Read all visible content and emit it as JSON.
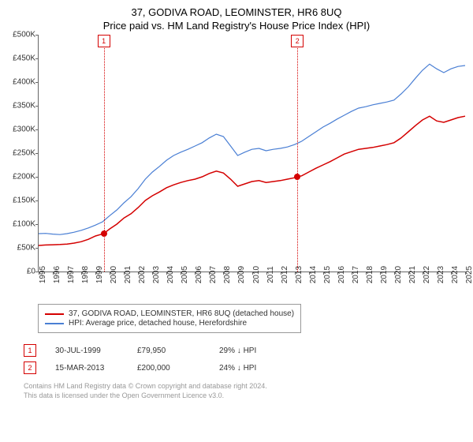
{
  "title": {
    "main": "37, GODIVA ROAD, LEOMINSTER, HR6 8UQ",
    "sub": "Price paid vs. HM Land Registry's House Price Index (HPI)"
  },
  "chart": {
    "type": "line",
    "background": "#ffffff",
    "ylim": [
      0,
      500000
    ],
    "ytick_step": 50000,
    "ytick_prefix": "£",
    "ytick_suffix": "K",
    "ytick_divisor": 1000,
    "xlim": [
      1995,
      2025
    ],
    "xtick_step": 1,
    "axis_color": "#666666",
    "tick_fontsize": 10,
    "series": [
      {
        "id": "property",
        "label": "37, GODIVA ROAD, LEOMINSTER, HR6 8UQ (detached house)",
        "color": "#d40000",
        "width": 1.5,
        "data": [
          [
            1995,
            55000
          ],
          [
            1995.5,
            56000
          ],
          [
            1996,
            56500
          ],
          [
            1996.5,
            57000
          ],
          [
            1997,
            58000
          ],
          [
            1997.5,
            60000
          ],
          [
            1998,
            63000
          ],
          [
            1998.5,
            68000
          ],
          [
            1999,
            75000
          ],
          [
            1999.58,
            80000
          ],
          [
            2000,
            90000
          ],
          [
            2000.5,
            100000
          ],
          [
            2001,
            113000
          ],
          [
            2001.5,
            122000
          ],
          [
            2002,
            135000
          ],
          [
            2002.5,
            150000
          ],
          [
            2003,
            160000
          ],
          [
            2003.5,
            168000
          ],
          [
            2004,
            177000
          ],
          [
            2004.5,
            183000
          ],
          [
            2005,
            188000
          ],
          [
            2005.5,
            192000
          ],
          [
            2006,
            195000
          ],
          [
            2006.5,
            200000
          ],
          [
            2007,
            207000
          ],
          [
            2007.5,
            212000
          ],
          [
            2008,
            208000
          ],
          [
            2008.5,
            195000
          ],
          [
            2009,
            180000
          ],
          [
            2009.5,
            185000
          ],
          [
            2010,
            190000
          ],
          [
            2010.5,
            192000
          ],
          [
            2011,
            188000
          ],
          [
            2011.5,
            190000
          ],
          [
            2012,
            192000
          ],
          [
            2012.5,
            195000
          ],
          [
            2013,
            198000
          ],
          [
            2013.2,
            200000
          ],
          [
            2013.5,
            202000
          ],
          [
            2014,
            210000
          ],
          [
            2014.5,
            218000
          ],
          [
            2015,
            225000
          ],
          [
            2015.5,
            232000
          ],
          [
            2016,
            240000
          ],
          [
            2016.5,
            248000
          ],
          [
            2017,
            253000
          ],
          [
            2017.5,
            258000
          ],
          [
            2018,
            260000
          ],
          [
            2018.5,
            262000
          ],
          [
            2019,
            265000
          ],
          [
            2019.5,
            268000
          ],
          [
            2020,
            272000
          ],
          [
            2020.5,
            282000
          ],
          [
            2021,
            295000
          ],
          [
            2021.5,
            308000
          ],
          [
            2022,
            320000
          ],
          [
            2022.5,
            328000
          ],
          [
            2023,
            318000
          ],
          [
            2023.5,
            315000
          ],
          [
            2024,
            320000
          ],
          [
            2024.5,
            325000
          ],
          [
            2025,
            328000
          ]
        ]
      },
      {
        "id": "hpi",
        "label": "HPI: Average price, detached house, Herefordshire",
        "color": "#4a7fd4",
        "width": 1.2,
        "data": [
          [
            1995,
            80000
          ],
          [
            1995.5,
            80500
          ],
          [
            1996,
            79000
          ],
          [
            1996.5,
            78000
          ],
          [
            1997,
            80000
          ],
          [
            1997.5,
            83000
          ],
          [
            1998,
            87000
          ],
          [
            1998.5,
            92000
          ],
          [
            1999,
            98000
          ],
          [
            1999.5,
            105000
          ],
          [
            2000,
            118000
          ],
          [
            2000.5,
            130000
          ],
          [
            2001,
            145000
          ],
          [
            2001.5,
            158000
          ],
          [
            2002,
            175000
          ],
          [
            2002.5,
            195000
          ],
          [
            2003,
            210000
          ],
          [
            2003.5,
            222000
          ],
          [
            2004,
            235000
          ],
          [
            2004.5,
            245000
          ],
          [
            2005,
            252000
          ],
          [
            2005.5,
            258000
          ],
          [
            2006,
            265000
          ],
          [
            2006.5,
            272000
          ],
          [
            2007,
            282000
          ],
          [
            2007.5,
            290000
          ],
          [
            2008,
            285000
          ],
          [
            2008.5,
            265000
          ],
          [
            2009,
            245000
          ],
          [
            2009.5,
            252000
          ],
          [
            2010,
            258000
          ],
          [
            2010.5,
            260000
          ],
          [
            2011,
            255000
          ],
          [
            2011.5,
            258000
          ],
          [
            2012,
            260000
          ],
          [
            2012.5,
            263000
          ],
          [
            2013,
            268000
          ],
          [
            2013.5,
            275000
          ],
          [
            2014,
            285000
          ],
          [
            2014.5,
            295000
          ],
          [
            2015,
            305000
          ],
          [
            2015.5,
            313000
          ],
          [
            2016,
            322000
          ],
          [
            2016.5,
            330000
          ],
          [
            2017,
            338000
          ],
          [
            2017.5,
            345000
          ],
          [
            2018,
            348000
          ],
          [
            2018.5,
            352000
          ],
          [
            2019,
            355000
          ],
          [
            2019.5,
            358000
          ],
          [
            2020,
            362000
          ],
          [
            2020.5,
            375000
          ],
          [
            2021,
            390000
          ],
          [
            2021.5,
            408000
          ],
          [
            2022,
            425000
          ],
          [
            2022.5,
            438000
          ],
          [
            2023,
            428000
          ],
          [
            2023.5,
            420000
          ],
          [
            2024,
            428000
          ],
          [
            2024.5,
            433000
          ],
          [
            2025,
            435000
          ]
        ]
      }
    ],
    "markers": [
      {
        "n": "1",
        "x": 1999.58,
        "color": "#d40000"
      },
      {
        "n": "2",
        "x": 2013.2,
        "color": "#d40000"
      }
    ],
    "points": [
      {
        "x": 1999.58,
        "y": 79950,
        "color": "#d40000"
      },
      {
        "x": 2013.2,
        "y": 200000,
        "color": "#d40000"
      }
    ]
  },
  "legend": {
    "border_color": "#999999"
  },
  "sales": [
    {
      "n": "1",
      "date": "30-JUL-1999",
      "price": "£79,950",
      "delta": "29% ↓ HPI",
      "color": "#d40000"
    },
    {
      "n": "2",
      "date": "15-MAR-2013",
      "price": "£200,000",
      "delta": "24% ↓ HPI",
      "color": "#d40000"
    }
  ],
  "footer": {
    "line1": "Contains HM Land Registry data © Crown copyright and database right 2024.",
    "line2": "This data is licensed under the Open Government Licence v3.0."
  }
}
